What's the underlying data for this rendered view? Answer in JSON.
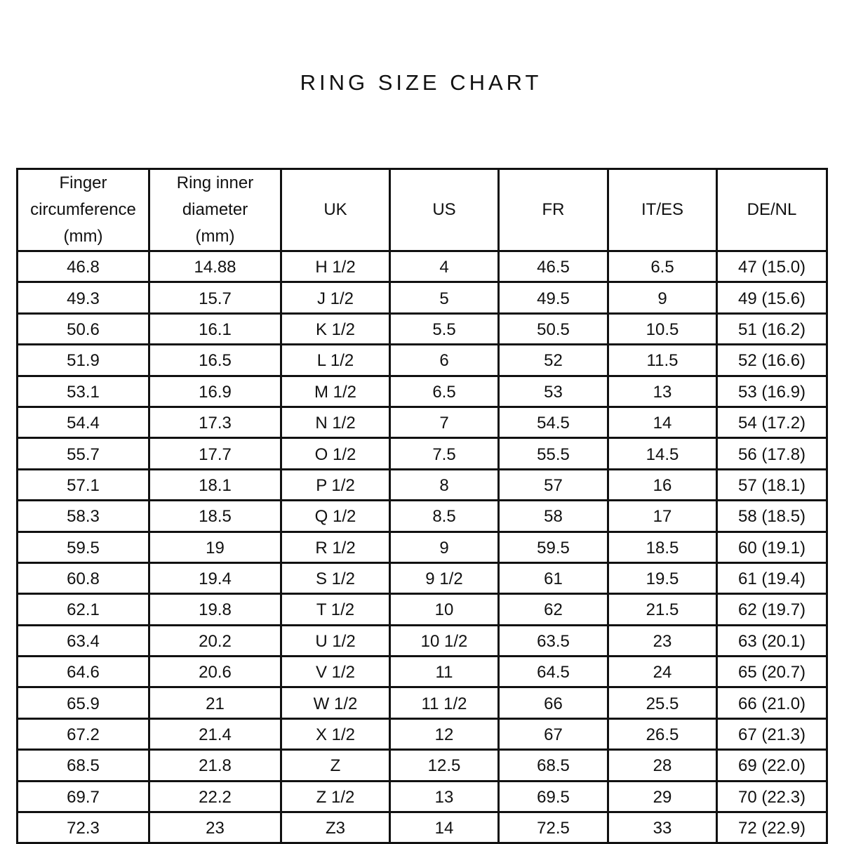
{
  "title": "RING SIZE CHART",
  "table": {
    "headers": [
      [
        "Finger",
        "circumference",
        "(mm)"
      ],
      [
        "Ring inner",
        "diameter",
        "(mm)"
      ],
      [
        "UK"
      ],
      [
        "US"
      ],
      [
        "FR"
      ],
      [
        "IT/ES"
      ],
      [
        "DE/NL"
      ]
    ],
    "rows": [
      [
        "46.8",
        "14.88",
        "H 1/2",
        "4",
        "46.5",
        "6.5",
        "47 (15.0)"
      ],
      [
        "49.3",
        "15.7",
        "J 1/2",
        "5",
        "49.5",
        "9",
        "49 (15.6)"
      ],
      [
        "50.6",
        "16.1",
        "K 1/2",
        "5.5",
        "50.5",
        "10.5",
        "51 (16.2)"
      ],
      [
        "51.9",
        "16.5",
        "L 1/2",
        "6",
        "52",
        "11.5",
        "52 (16.6)"
      ],
      [
        "53.1",
        "16.9",
        "M 1/2",
        "6.5",
        "53",
        "13",
        "53 (16.9)"
      ],
      [
        "54.4",
        "17.3",
        "N 1/2",
        "7",
        "54.5",
        "14",
        "54 (17.2)"
      ],
      [
        "55.7",
        "17.7",
        "O 1/2",
        "7.5",
        "55.5",
        "14.5",
        "56 (17.8)"
      ],
      [
        "57.1",
        "18.1",
        "P 1/2",
        "8",
        "57",
        "16",
        "57 (18.1)"
      ],
      [
        "58.3",
        "18.5",
        "Q 1/2",
        "8.5",
        "58",
        "17",
        "58 (18.5)"
      ],
      [
        "59.5",
        "19",
        "R 1/2",
        "9",
        "59.5",
        "18.5",
        "60 (19.1)"
      ],
      [
        "60.8",
        "19.4",
        "S 1/2",
        "9 1/2",
        "61",
        "19.5",
        "61 (19.4)"
      ],
      [
        "62.1",
        "19.8",
        "T 1/2",
        "10",
        "62",
        "21.5",
        "62 (19.7)"
      ],
      [
        "63.4",
        "20.2",
        "U 1/2",
        "10 1/2",
        "63.5",
        "23",
        "63 (20.1)"
      ],
      [
        "64.6",
        "20.6",
        "V 1/2",
        "11",
        "64.5",
        "24",
        "65 (20.7)"
      ],
      [
        "65.9",
        "21",
        "W 1/2",
        "11 1/2",
        "66",
        "25.5",
        "66 (21.0)"
      ],
      [
        "67.2",
        "21.4",
        "X 1/2",
        "12",
        "67",
        "26.5",
        "67 (21.3)"
      ],
      [
        "68.5",
        "21.8",
        "Z",
        "12.5",
        "68.5",
        "28",
        "69 (22.0)"
      ],
      [
        "69.7",
        "22.2",
        "Z 1/2",
        "13",
        "69.5",
        "29",
        "70 (22.3)"
      ],
      [
        "72.3",
        "23",
        "Z3",
        "14",
        "72.5",
        "33",
        "72 (22.9)"
      ]
    ]
  }
}
